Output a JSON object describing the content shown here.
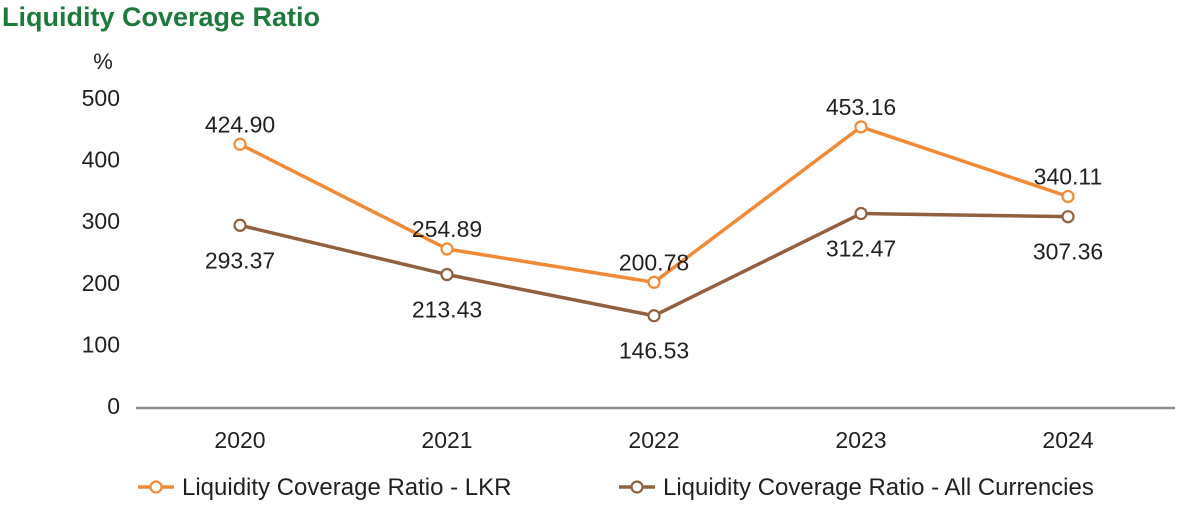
{
  "chart_data": {
    "type": "line",
    "title": "Liquidity Coverage Ratio",
    "ylabel": "%",
    "xlabel": "",
    "categories": [
      "2020",
      "2021",
      "2022",
      "2023",
      "2024"
    ],
    "ylim": [
      0,
      500
    ],
    "yticks": [
      0,
      100,
      200,
      300,
      400,
      500
    ],
    "grid": false,
    "legend_position": "bottom",
    "series": [
      {
        "name": "Liquidity Coverage Ratio - LKR",
        "color": "#f08a36",
        "values": [
          424.9,
          254.89,
          200.78,
          453.16,
          340.11
        ],
        "labels": [
          "424.90",
          "254.89",
          "200.78",
          "453.16",
          "340.11"
        ],
        "label_side": [
          "above",
          "above",
          "above",
          "above",
          "above"
        ]
      },
      {
        "name": "Liquidity Coverage Ratio - All Currencies",
        "color": "#91603f",
        "values": [
          293.37,
          213.43,
          146.53,
          312.47,
          307.36
        ],
        "labels": [
          "293.37",
          "213.43",
          "146.53",
          "312.47",
          "307.36"
        ],
        "label_side": [
          "below",
          "below",
          "below",
          "below",
          "below"
        ]
      }
    ],
    "axis_color": "#8c8c8c"
  }
}
